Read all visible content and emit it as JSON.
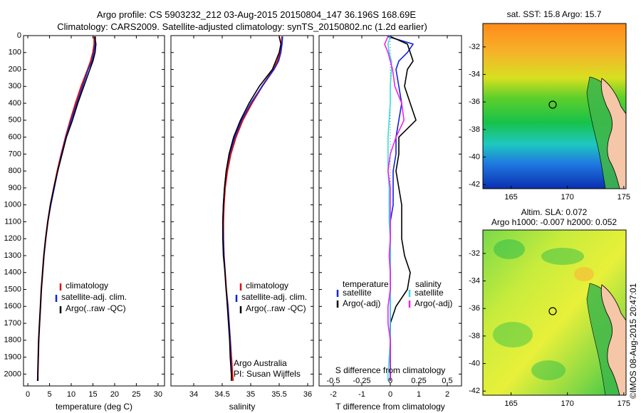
{
  "header": {
    "line1": "Argo profile: CS 5903232_212 03-Aug-2015 20150804_147 36.196S 168.69E",
    "line2": "Climatology: CARS2009. Satellite-adjusted climatology: synTS_20150802.nc (1.2d earlier)"
  },
  "credit": "©IMOS 08-Aug-2015 20:47:01",
  "colors": {
    "climatology": "#dd1111",
    "satellite": "#1122dd",
    "argo": "#000000",
    "argo_adj_salinity": "#ee22ee",
    "satellite_salinity": "#33dddd",
    "ocean_warm": "#f0c040",
    "land": "#f5c6a8"
  },
  "chart_data": [
    {
      "type": "line",
      "panel": "temperature",
      "xlabel": "temperature (deg C)",
      "ylabel": "",
      "xlim": [
        -1,
        31.5
      ],
      "ylim": [
        2070,
        0
      ],
      "xticks": [
        0,
        5,
        10,
        15,
        20,
        25,
        30
      ],
      "yticks": [
        0,
        100,
        200,
        300,
        400,
        500,
        600,
        700,
        800,
        900,
        1000,
        1100,
        1200,
        1300,
        1400,
        1500,
        1600,
        1700,
        1800,
        1900,
        2000
      ],
      "legend": [
        "climatology",
        "satellite-adj. clim.",
        "Argo(..raw -QC)"
      ],
      "legend_position": "lower-center",
      "depth": [
        5,
        50,
        100,
        150,
        200,
        300,
        400,
        500,
        600,
        700,
        800,
        900,
        1000,
        1100,
        1200,
        1300,
        1400,
        1500,
        1600,
        1700,
        1800,
        1900,
        2000,
        2040
      ],
      "series": [
        {
          "name": "climatology",
          "values": [
            15.3,
            15.3,
            15.0,
            14.5,
            13.8,
            12.3,
            11.0,
            9.8,
            8.7,
            7.7,
            6.8,
            6.0,
            5.2,
            4.6,
            4.1,
            3.7,
            3.4,
            3.1,
            2.9,
            2.7,
            2.5,
            2.4,
            2.3,
            2.3
          ]
        },
        {
          "name": "satellite-adj. clim.",
          "values": [
            15.6,
            15.5,
            15.2,
            14.8,
            13.9,
            12.6,
            11.3,
            10.0,
            8.8,
            7.8,
            6.9,
            6.1,
            5.3,
            4.6,
            4.1,
            3.7,
            3.4,
            3.1,
            2.9,
            2.7,
            2.5,
            2.4,
            2.3,
            2.2
          ]
        },
        {
          "name": "Argo(..raw -QC)",
          "values": [
            15.4,
            15.7,
            15.5,
            15.0,
            14.3,
            12.9,
            11.5,
            10.3,
            8.9,
            7.9,
            6.9,
            6.0,
            5.2,
            4.6,
            4.1,
            3.7,
            3.4,
            3.1,
            2.9,
            2.7,
            2.5,
            2.4,
            2.3,
            2.3
          ]
        }
      ]
    },
    {
      "type": "line",
      "panel": "salinity",
      "xlabel": "salinity",
      "ylabel": "",
      "xlim": [
        33.6,
        36.1
      ],
      "ylim": [
        2070,
        0
      ],
      "xticks": [
        34,
        34.5,
        35,
        35.5,
        36
      ],
      "xtick_labels": [
        "34",
        "34.5",
        "35",
        "35.5",
        "36"
      ],
      "legend": [
        "climatology",
        "satellite-adj. clim.",
        "Argo(..raw -QC)"
      ],
      "legend_position": "lower-center",
      "annotation": [
        "Argo Australia",
        "PI: Susan Wijffels"
      ],
      "depth": [
        5,
        50,
        100,
        150,
        200,
        300,
        400,
        500,
        600,
        700,
        800,
        900,
        1000,
        1100,
        1200,
        1300,
        1400,
        1500,
        1600,
        1700,
        1800,
        1900,
        2000,
        2040
      ],
      "series": [
        {
          "name": "climatology",
          "values": [
            35.55,
            35.54,
            35.52,
            35.47,
            35.4,
            35.2,
            35.02,
            34.86,
            34.74,
            34.65,
            34.59,
            34.55,
            34.53,
            34.52,
            34.52,
            34.53,
            34.55,
            34.57,
            34.6,
            34.62,
            34.64,
            34.66,
            34.68,
            34.69
          ]
        },
        {
          "name": "satellite-adj. clim.",
          "values": [
            35.56,
            35.55,
            35.53,
            35.49,
            35.41,
            35.2,
            35.0,
            34.84,
            34.72,
            34.63,
            34.57,
            34.54,
            34.52,
            34.51,
            34.52,
            34.53,
            34.55,
            34.57,
            34.6,
            34.62,
            34.64,
            34.65,
            34.66,
            34.66
          ]
        },
        {
          "name": "Argo(..raw -QC)",
          "values": [
            35.5,
            35.53,
            35.5,
            35.44,
            35.38,
            35.15,
            34.97,
            34.82,
            34.7,
            34.62,
            34.57,
            34.54,
            34.52,
            34.51,
            34.51,
            34.52,
            34.55,
            34.57,
            34.59,
            34.61,
            34.63,
            34.64,
            34.66,
            34.66
          ]
        }
      ]
    },
    {
      "type": "line",
      "panel": "difference",
      "xlabel": "T difference from climatology",
      "xlabel2": "S difference from climatology",
      "ylabel": "",
      "xlim": [
        -2.5,
        2.5
      ],
      "ylim": [
        2070,
        0
      ],
      "xticks": [
        -2,
        -1,
        0,
        1,
        2
      ],
      "xtick_labels": [
        "-2",
        "-1",
        "0",
        "1",
        "2"
      ],
      "xticks_s": [
        -0.5,
        -0.25,
        0,
        0.25,
        0.5
      ],
      "xtick_labels_s": [
        "-0.5",
        "-0.25",
        "0",
        "0.25",
        "0.5"
      ],
      "legend_temperature": [
        "temperature",
        "satellite",
        "Argo(-adj)"
      ],
      "legend_salinity": [
        "salinity",
        "satellite",
        "Argo(-adj)"
      ],
      "depth": [
        5,
        50,
        100,
        150,
        200,
        300,
        400,
        500,
        600,
        700,
        800,
        900,
        1000,
        1100,
        1200,
        1300,
        1400,
        1500,
        1600,
        1700,
        1800,
        1900,
        2000,
        2040
      ],
      "series": [
        {
          "name": "T satellite",
          "values": [
            -0.1,
            0.8,
            0.6,
            0.3,
            0.2,
            0.3,
            0.4,
            0.3,
            0.2,
            0.2,
            0.1,
            0.1,
            0.1,
            0.0,
            0.0,
            0.0,
            0.0,
            0.0,
            0.0,
            0.0,
            0.0,
            0.0,
            0.0,
            0.0
          ]
        },
        {
          "name": "T Argo(-adj)",
          "values": [
            0.0,
            0.6,
            0.7,
            0.8,
            0.6,
            0.5,
            0.7,
            0.9,
            0.3,
            0.3,
            0.2,
            0.3,
            0.4,
            0.4,
            0.4,
            0.5,
            0.7,
            0.6,
            0.2,
            0.0,
            0.0,
            0.0,
            0.0,
            0.0
          ]
        },
        {
          "name": "S satellite",
          "values": [
            0.0,
            -0.02,
            -0.01,
            0.01,
            0.01,
            0.0,
            0.0,
            -0.01,
            -0.02,
            -0.02,
            -0.02,
            -0.01,
            -0.01,
            -0.01,
            0.0,
            0.0,
            0.0,
            0.0,
            0.0,
            0.0,
            0.0,
            -0.01,
            -0.02,
            -0.02
          ]
        },
        {
          "name": "S Argo(-adj)",
          "values": [
            -0.02,
            -0.05,
            -0.02,
            0.0,
            0.02,
            0.04,
            0.1,
            0.12,
            0.05,
            0.0,
            -0.02,
            0.0,
            0.0,
            0.0,
            0.0,
            -0.01,
            0.0,
            0.0,
            -0.02,
            -0.02,
            0.0,
            0.0,
            0.0,
            0.0
          ]
        }
      ]
    }
  ],
  "maps": [
    {
      "title": "sat. SST: 15.8 Argo: 15.7",
      "xticks": [
        165,
        170,
        175
      ],
      "yticks": [
        -32,
        -34,
        -36,
        -38,
        -40,
        -42
      ],
      "xlim": [
        162.5,
        175.2
      ],
      "ylim": [
        -42.3,
        -30.3
      ],
      "argo_position": [
        168.69,
        -36.196
      ]
    },
    {
      "title_line1": "Altim. SLA: 0.072",
      "title_line2": "Argo h1000: -0.007 h2000: 0.052",
      "xticks": [
        165,
        170,
        175
      ],
      "yticks": [
        -32,
        -34,
        -36,
        -38,
        -40,
        -42
      ],
      "xlim": [
        162.5,
        175.2
      ],
      "ylim": [
        -42.3,
        -30.3
      ],
      "argo_position": [
        168.69,
        -36.196
      ]
    }
  ]
}
